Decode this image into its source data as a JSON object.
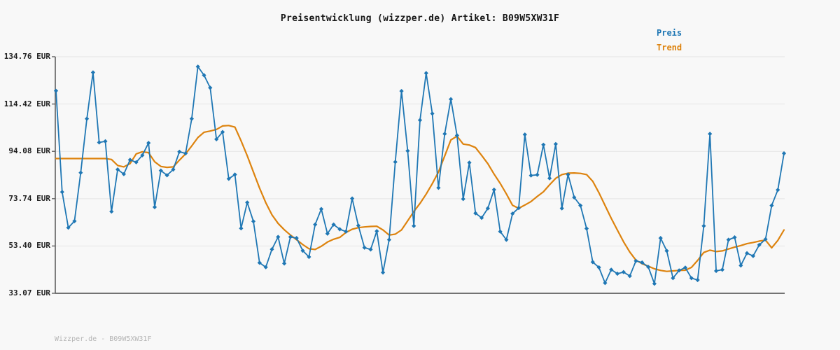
{
  "title": "Preisentwicklung (wizzper.de) Artikel: B09W5XW31F",
  "watermark": "Wizzper.de - B09W5XW31F",
  "legend": {
    "preis_label": "Preis",
    "trend_label": "Trend"
  },
  "colors": {
    "preis": "#1f77b4",
    "trend": "#dd830e",
    "grid": "#e4e4e4",
    "spine": "#606060",
    "background": "#f8f8f8",
    "text": "#161616",
    "watermark": "#b5b5b5"
  },
  "chart_data": {
    "type": "line",
    "title": "Preisentwicklung (wizzper.de) Artikel: B09W5XW31F",
    "xlabel": "",
    "ylabel": "EUR",
    "ylim": [
      33.07,
      134.76
    ],
    "grid": true,
    "legend_position": "top-right",
    "x_tick_labels": [],
    "y_ticks": [
      "134.76 EUR",
      "114.42 EUR",
      "94.08 EUR",
      "73.74 EUR",
      "53.40 EUR",
      "33.07 EUR"
    ],
    "y_tick_values": [
      134.76,
      114.42,
      94.08,
      73.74,
      53.4,
      33.07
    ],
    "series": [
      {
        "name": "Preis",
        "color": "#1f77b4",
        "marker": "diamond",
        "values": [
          120.1,
          76.6,
          61.3,
          64.1,
          84.9,
          108.1,
          128.0,
          97.9,
          98.4,
          68.2,
          86.3,
          84.3,
          90.4,
          89.4,
          92.4,
          97.7,
          70.1,
          85.8,
          83.8,
          86.3,
          93.9,
          93.2,
          108.1,
          130.5,
          126.8,
          121.4,
          99.3,
          102.4,
          82.3,
          84.1,
          61.0,
          72.1,
          64.0,
          46.2,
          44.3,
          52.0,
          57.3,
          45.9,
          57.3,
          56.8,
          51.4,
          48.7,
          62.6,
          69.3,
          58.7,
          62.6,
          60.6,
          59.6,
          73.8,
          62.2,
          52.7,
          51.9,
          59.8,
          42.0,
          56.1,
          89.5,
          120.0,
          94.3,
          62.0,
          107.5,
          127.7,
          110.3,
          78.4,
          101.6,
          116.5,
          100.9,
          73.6,
          89.2,
          67.5,
          65.5,
          69.6,
          77.6,
          59.6,
          56.1,
          67.3,
          69.7,
          101.3,
          83.7,
          84.0,
          96.9,
          82.5,
          97.2,
          69.6,
          84.1,
          74.3,
          70.8,
          60.9,
          46.5,
          44.2,
          37.5,
          43.2,
          41.5,
          42.2,
          40.5,
          47.0,
          46.3,
          44.4,
          37.2,
          56.8,
          51.3,
          39.6,
          42.9,
          44.1,
          39.6,
          38.8,
          62.0,
          101.6,
          42.7,
          43.2,
          56.1,
          57.1,
          45.0,
          50.3,
          49.1,
          53.9,
          56.3,
          70.8,
          77.5,
          93.2
        ]
      },
      {
        "name": "Trend",
        "color": "#dd830e",
        "marker": "none",
        "values": [
          91.0,
          91.0,
          91.0,
          91.0,
          91.0,
          91.0,
          91.0,
          91.0,
          91.0,
          90.6,
          88.0,
          87.4,
          88.8,
          93.0,
          93.9,
          93.5,
          89.6,
          87.6,
          87.2,
          87.4,
          90.3,
          93.0,
          96.4,
          100.0,
          102.3,
          102.8,
          103.5,
          105.0,
          105.2,
          104.5,
          98.6,
          92.2,
          85.2,
          78.3,
          72.0,
          66.8,
          63.1,
          60.4,
          58.1,
          56.1,
          54.0,
          52.2,
          51.9,
          53.3,
          55.1,
          56.3,
          57.1,
          59.2,
          60.6,
          61.3,
          61.6,
          61.8,
          61.9,
          60.3,
          58.1,
          58.5,
          60.3,
          64.2,
          68.2,
          71.7,
          75.7,
          80.2,
          85.2,
          92.1,
          99.0,
          100.6,
          97.2,
          96.8,
          95.7,
          92.3,
          88.8,
          84.3,
          80.3,
          75.8,
          70.9,
          69.6,
          71.0,
          72.5,
          74.7,
          76.7,
          79.7,
          82.5,
          84.1,
          84.7,
          84.8,
          84.6,
          84.1,
          81.2,
          76.3,
          70.8,
          65.3,
          60.2,
          55.2,
          50.8,
          47.3,
          45.8,
          44.7,
          43.6,
          42.9,
          42.5,
          42.7,
          42.9,
          43.0,
          44.2,
          47.2,
          50.6,
          51.6,
          51.0,
          51.3,
          52.1,
          52.9,
          53.6,
          54.4,
          54.9,
          55.5,
          55.9,
          52.6,
          55.8,
          60.3
        ]
      }
    ]
  }
}
